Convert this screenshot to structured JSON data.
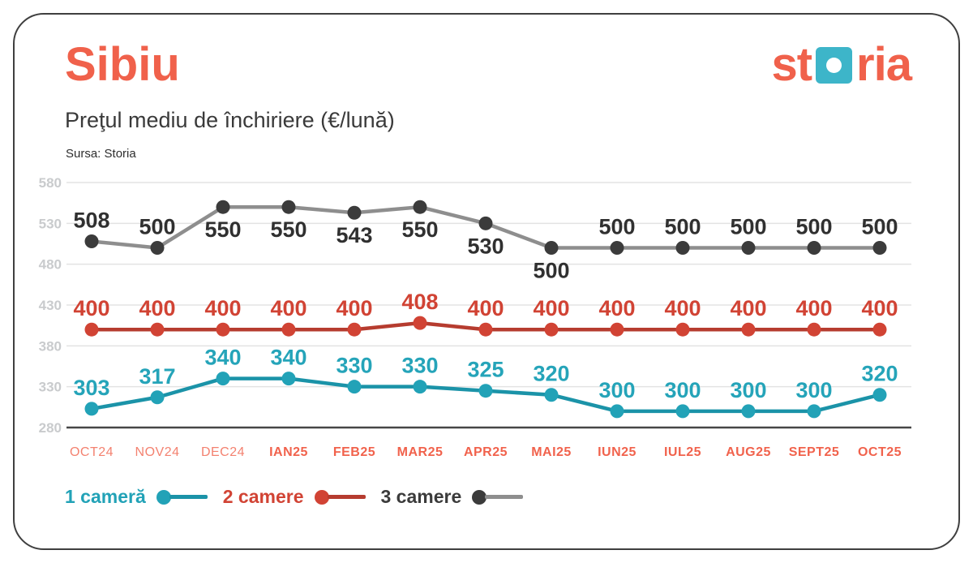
{
  "page": {
    "title": "Sibiu",
    "subtitle": "Preţul mediu de închiriere (€/lună)",
    "source": "Sursa: Storia"
  },
  "brand": {
    "name": "storia",
    "logo_prefix": "st",
    "logo_suffix": "ria"
  },
  "colors": {
    "accent_coral": "#f0614b",
    "logo_square_teal": "#3db5c9",
    "teal_point": "#22a2b7",
    "teal_line": "#1b93a8",
    "red_point": "#d14334",
    "red_line": "#b63c2f",
    "gray_point": "#3b3b3b",
    "gray_line": "#8e8e8e",
    "gray_label": "#303030",
    "grid_line": "#e3e3e3",
    "axis_line": "#474747",
    "tick_label": "#c9cbcd",
    "month_label": "#f1624c"
  },
  "chart_data": {
    "type": "line",
    "title": "Preţul mediu de închiriere (€/lună)",
    "categories": [
      "OCT24",
      "NOV24",
      "DEC24",
      "IAN25",
      "FEB25",
      "MAR25",
      "APR25",
      "MAI25",
      "IUN25",
      "IUL25",
      "AUG25",
      "SEPT25",
      "OCT25"
    ],
    "series": [
      {
        "name": "1 cameră",
        "values": [
          303,
          317,
          340,
          340,
          330,
          330,
          325,
          320,
          300,
          300,
          300,
          300,
          320
        ],
        "point_color": "#22a2b7",
        "line_color": "#1b93a8",
        "label_color": "#25a4b9",
        "label_positions": [
          "above",
          "above",
          "above",
          "above",
          "above",
          "above",
          "above",
          "above",
          "above",
          "above",
          "above",
          "above",
          "above"
        ]
      },
      {
        "name": "2 camere",
        "values": [
          400,
          400,
          400,
          400,
          400,
          408,
          400,
          400,
          400,
          400,
          400,
          400,
          400
        ],
        "point_color": "#d14334",
        "line_color": "#b63c2f",
        "label_color": "#d14334",
        "label_positions": [
          "above",
          "above",
          "above",
          "above",
          "above",
          "above",
          "above",
          "above",
          "above",
          "above",
          "above",
          "above",
          "above"
        ]
      },
      {
        "name": "3 camere",
        "values": [
          508,
          500,
          550,
          550,
          543,
          550,
          530,
          500,
          500,
          500,
          500,
          500,
          500
        ],
        "point_color": "#3b3b3b",
        "line_color": "#8e8e8e",
        "label_color": "#303030",
        "label_positions": [
          "above",
          "above",
          "below",
          "below",
          "below",
          "below",
          "below",
          "below",
          "above",
          "above",
          "above",
          "above",
          "above"
        ]
      }
    ],
    "y_axis": {
      "min": 280,
      "max": 580,
      "step": 50,
      "ticks": [
        580,
        530,
        480,
        430,
        380,
        330,
        280
      ]
    },
    "grid": true,
    "legend_position": "bottom",
    "bold_category_suffix": "25"
  },
  "legend": {
    "items": [
      {
        "label": "1 cameră"
      },
      {
        "label": "2 camere"
      },
      {
        "label": "3 camere"
      }
    ]
  }
}
